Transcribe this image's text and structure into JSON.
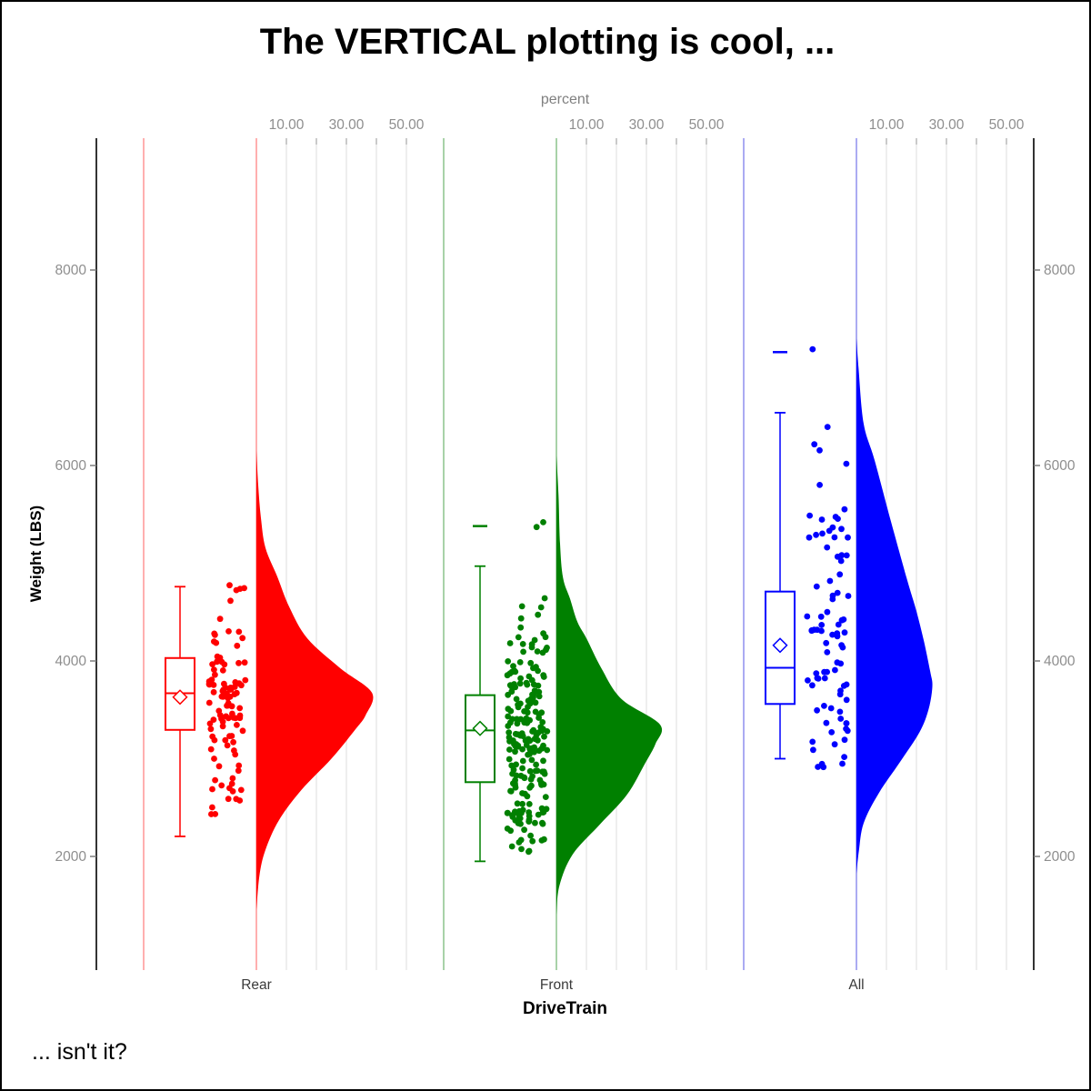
{
  "title": "The VERTICAL plotting is cool, ...",
  "footnote": "... isn't it?",
  "top_axis": {
    "label": "percent",
    "tick_labels": [
      "10.00",
      "30.00",
      "50.00"
    ],
    "tick_values": [
      10,
      30,
      50
    ],
    "grid_values": [
      10,
      20,
      30,
      40,
      50
    ]
  },
  "y_axis": {
    "label": "Weight (LBS)",
    "tick_labels": [
      "2000",
      "4000",
      "6000",
      "8000"
    ],
    "tick_values": [
      2000,
      4000,
      6000,
      8000
    ],
    "range": [
      840,
      9350
    ]
  },
  "x_axis": {
    "label": "DriveTrain",
    "categories": [
      "Rear",
      "Front",
      "All"
    ]
  },
  "colors": {
    "axis": "#000000",
    "grid": "#EDEDED",
    "grid_tick": "#C6C6C6",
    "tick_label": "#8E8E8E",
    "category_label": "#3A3A3A",
    "groups": [
      "#FF0000",
      "#008000",
      "#0000FF"
    ],
    "groups_light": [
      "#FFAFAF",
      "#A8D2A8",
      "#ABABF2"
    ]
  },
  "chart_data": {
    "type": "raincloud (half-violin area + box plot + jittered scatter, vertical)",
    "title": "The VERTICAL plotting is cool, ...",
    "x_label": "DriveTrain",
    "y_label": "Weight (LBS)",
    "categories": [
      "Rear",
      "Front",
      "All"
    ],
    "ylim": [
      840,
      9350
    ],
    "grid": "vertical percent gridlines per category",
    "percent_axis": {
      "label": "percent",
      "ticks": [
        10,
        30,
        50
      ],
      "gridlines": [
        10,
        20,
        30,
        40,
        50
      ]
    },
    "groups": [
      {
        "name": "Rear",
        "color": "#FF0000",
        "box": {
          "whisker_low": 2205,
          "q1": 3295,
          "median": 3670,
          "mean": 3630,
          "q3": 4030,
          "whisker_high": 4760,
          "far_outliers": []
        },
        "density_weight_percent": [
          [
            6150,
            0
          ],
          [
            5800,
            0.6
          ],
          [
            5470,
            1.5
          ],
          [
            5160,
            3
          ],
          [
            4860,
            7
          ],
          [
            4550,
            11
          ],
          [
            4230,
            17
          ],
          [
            3925,
            28
          ],
          [
            3675,
            38.5
          ],
          [
            3450,
            36.5
          ],
          [
            3300,
            33
          ],
          [
            3000,
            25
          ],
          [
            2680,
            15
          ],
          [
            2370,
            7.5
          ],
          [
            2065,
            3
          ],
          [
            1800,
            1
          ],
          [
            1450,
            0
          ]
        ],
        "scatter": {
          "n": 100,
          "seed": 11,
          "weight_range": [
            2170,
            4785
          ],
          "extra_weights": [
            4775,
            4745
          ],
          "jitter_halfwidth": 20
        }
      },
      {
        "name": "Front",
        "color": "#008000",
        "box": {
          "whisker_low": 1950,
          "q1": 2760,
          "median": 3290,
          "mean": 3310,
          "q3": 3650,
          "whisker_high": 4970,
          "far_outliers": [
            5380
          ]
        },
        "density_weight_percent": [
          [
            6100,
            0
          ],
          [
            5700,
            0.7
          ],
          [
            5200,
            1.2
          ],
          [
            4850,
            2.2
          ],
          [
            4640,
            4.5
          ],
          [
            4400,
            7
          ],
          [
            4233,
            10
          ],
          [
            3925,
            15
          ],
          [
            3610,
            21.7
          ],
          [
            3350,
            34.5
          ],
          [
            3150,
            33
          ],
          [
            2950,
            29.5
          ],
          [
            2630,
            23.5
          ],
          [
            2325,
            14.4
          ],
          [
            2020,
            5.4
          ],
          [
            1700,
            1
          ],
          [
            1400,
            0
          ]
        ],
        "scatter": {
          "n": 212,
          "seed": 22,
          "weight_range": [
            1845,
            5100
          ],
          "extra_weights": [
            5420,
            5370
          ],
          "jitter_halfwidth": 22
        }
      },
      {
        "name": "All",
        "color": "#0000FF",
        "box": {
          "whisker_low": 3000,
          "q1": 3560,
          "median": 3930,
          "mean": 4160,
          "q3": 4710,
          "whisker_high": 6540,
          "far_outliers": [
            7160
          ]
        },
        "density_weight_percent": [
          [
            7300,
            0
          ],
          [
            7000,
            0.7
          ],
          [
            6430,
            2.4
          ],
          [
            6060,
            6
          ],
          [
            5440,
            11.4
          ],
          [
            4820,
            17
          ],
          [
            4510,
            20
          ],
          [
            4200,
            22.5
          ],
          [
            3890,
            24.6
          ],
          [
            3740,
            25.3
          ],
          [
            3500,
            24
          ],
          [
            3270,
            21
          ],
          [
            2960,
            14.4
          ],
          [
            2650,
            7.5
          ],
          [
            2340,
            2.4
          ],
          [
            2050,
            0.8
          ],
          [
            1820,
            0
          ]
        ],
        "scatter": {
          "n": 86,
          "seed": 33,
          "weight_range": [
            2895,
            6460
          ],
          "extra_weights": [
            7190
          ],
          "jitter_halfwidth": 23
        }
      }
    ]
  }
}
